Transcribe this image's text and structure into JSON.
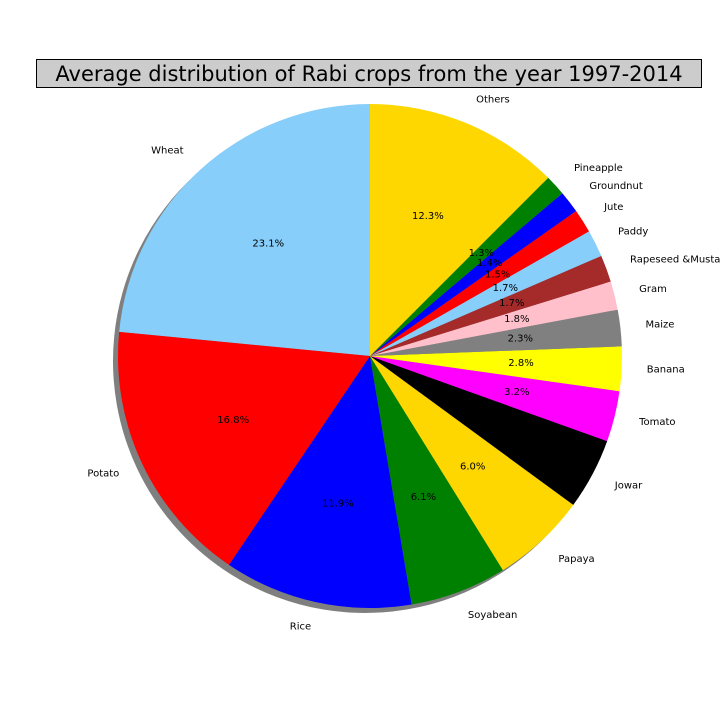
{
  "chart_data": {
    "type": "pie",
    "title": "Average distribution of Rabi crops from the year 1997-2014",
    "start_angle_deg": 90,
    "direction": "counterclockwise",
    "shadow": true,
    "slices": [
      {
        "label": "Wheat",
        "value": 23.1,
        "pct_label": "23.1%",
        "color": "#87CEFA"
      },
      {
        "label": "Potato",
        "value": 16.8,
        "pct_label": "16.8%",
        "color": "#FF0000"
      },
      {
        "label": "Rice",
        "value": 11.9,
        "pct_label": "11.9%",
        "color": "#0000FF"
      },
      {
        "label": "Soyabean",
        "value": 6.1,
        "pct_label": "6.1%",
        "color": "#008000"
      },
      {
        "label": "Papaya",
        "value": 6.0,
        "pct_label": "6.0%",
        "color": "#FFD700"
      },
      {
        "label": "Jowar",
        "value": 4.5,
        "pct_label": "4.5%",
        "color": "#000000"
      },
      {
        "label": "Tomato",
        "value": 3.2,
        "pct_label": "3.2%",
        "color": "#FF00FF"
      },
      {
        "label": "Banana",
        "value": 2.8,
        "pct_label": "2.8%",
        "color": "#FFFF00"
      },
      {
        "label": "Maize",
        "value": 2.3,
        "pct_label": "2.3%",
        "color": "#808080"
      },
      {
        "label": "Gram",
        "value": 1.8,
        "pct_label": "1.8%",
        "color": "#FFC0CB"
      },
      {
        "label": "Rapeseed &Mustard",
        "value": 1.7,
        "pct_label": "1.7%",
        "color": "#A52A2A"
      },
      {
        "label": "Paddy",
        "value": 1.7,
        "pct_label": "1.7%",
        "color": "#87CEFA"
      },
      {
        "label": "Jute",
        "value": 1.5,
        "pct_label": "1.5%",
        "color": "#FF0000"
      },
      {
        "label": "Groundnut",
        "value": 1.4,
        "pct_label": "1.4%",
        "color": "#0000FF"
      },
      {
        "label": "Pineapple",
        "value": 1.3,
        "pct_label": "1.3%",
        "color": "#008000"
      },
      {
        "label": "Others",
        "value": 12.3,
        "pct_label": "12.3%",
        "color": "#FFD700"
      }
    ]
  }
}
